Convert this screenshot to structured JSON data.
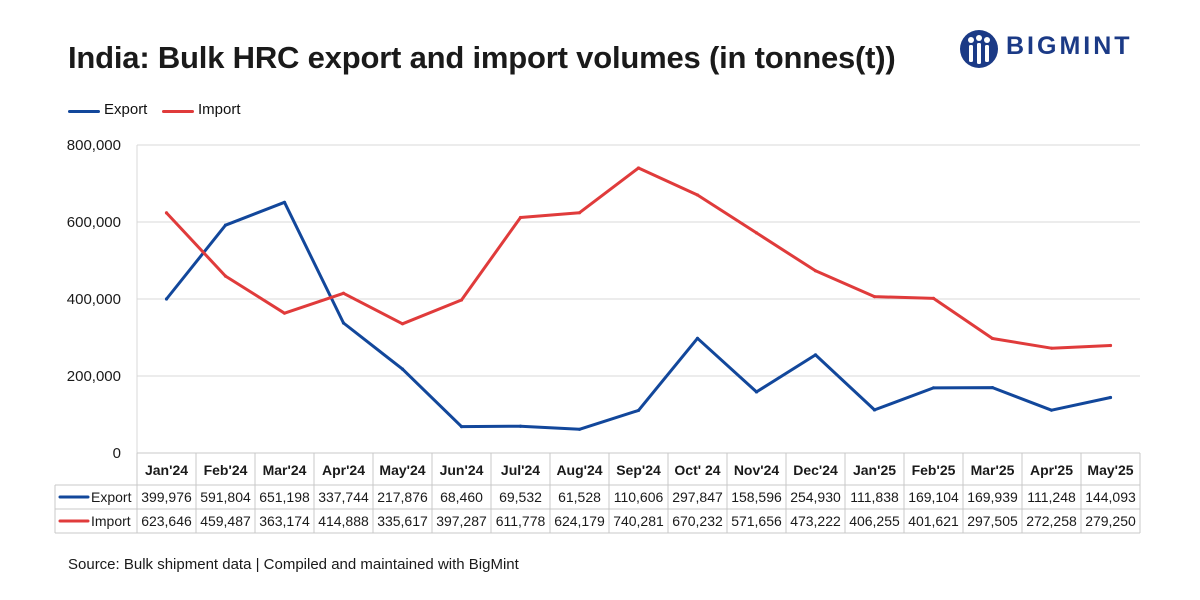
{
  "header": {
    "title": "India: Bulk HRC export and import volumes (in tonnes(t))",
    "logo_text": "BIGMINT"
  },
  "footer": {
    "source": "Source: Bulk shipment data | Compiled and maintained with BigMint"
  },
  "chart_data": {
    "type": "line",
    "title": "India: Bulk HRC export and import volumes (in tonnes(t))",
    "xlabel": "",
    "ylabel": "",
    "ylim": [
      0,
      800000
    ],
    "yticks": [
      0,
      200000,
      400000,
      600000,
      800000
    ],
    "grid": true,
    "legend_position": "top-left",
    "data_table": true,
    "categories": [
      "Jan'24",
      "Feb'24",
      "Mar'24",
      "Apr'24",
      "May'24",
      "Jun'24",
      "Jul'24",
      "Aug'24",
      "Sep'24",
      "Oct' 24",
      "Nov'24",
      "Dec'24",
      "Jan'25",
      "Feb'25",
      "Mar'25",
      "Apr'25",
      "May'25"
    ],
    "series": [
      {
        "name": "Export",
        "color": "#12479b",
        "values": [
          399976,
          591804,
          651198,
          337744,
          217876,
          68460,
          69532,
          61528,
          110606,
          297847,
          158596,
          254930,
          111838,
          169104,
          169939,
          111248,
          144093
        ],
        "labels": [
          "399,976",
          "591,804",
          "651,198",
          "337,744",
          "217,876",
          "68,460",
          "69,532",
          "61,528",
          "110,606",
          "297,847",
          "158,596",
          "254,930",
          "111,838",
          "169,104",
          "169,939",
          "111,248",
          "144,093"
        ]
      },
      {
        "name": "Import",
        "color": "#e03b3b",
        "values": [
          623646,
          459487,
          363174,
          414888,
          335617,
          397287,
          611778,
          624179,
          740281,
          670232,
          571656,
          473222,
          406255,
          401621,
          297505,
          272258,
          279250
        ],
        "labels": [
          "623,646",
          "459,487",
          "363,174",
          "414,888",
          "335,617",
          "397,287",
          "611,778",
          "624,179",
          "740,281",
          "670,232",
          "571,656",
          "473,222",
          "406,255",
          "401,621",
          "297,505",
          "272,258",
          "279,250"
        ]
      }
    ]
  }
}
